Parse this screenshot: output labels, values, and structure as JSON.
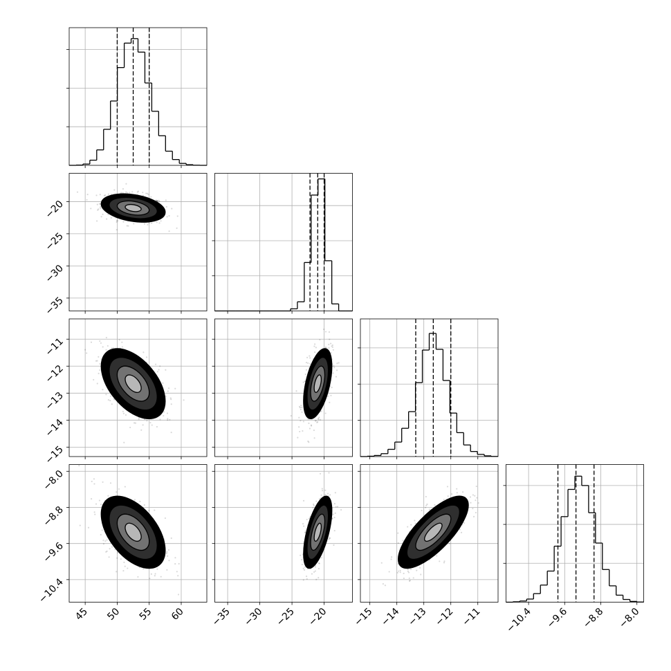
{
  "chart_data": {
    "type": "corner",
    "grid": true,
    "levels": [
      0.5,
      1,
      1.5,
      2
    ],
    "params": [
      {
        "xlim": [
          42.5,
          64
        ],
        "ticks": [
          45,
          50,
          55,
          60
        ],
        "bins": [
          42.5,
          43.575,
          44.65,
          45.725,
          46.8,
          47.875,
          48.95,
          50.025,
          51.1,
          52.175,
          53.25,
          54.325,
          55.4,
          56.475,
          57.55,
          58.625,
          59.7,
          60.775,
          61.85,
          62.925,
          64
        ],
        "counts": [
          0,
          2,
          10,
          40,
          120,
          280,
          500,
          760,
          950,
          985,
          880,
          640,
          420,
          230,
          110,
          45,
          15,
          5,
          1,
          0
        ],
        "hist_ylim": [
          0,
          1070
        ],
        "hist_yticks": [
          300,
          600,
          900
        ],
        "quantiles": [
          50.0,
          52.5,
          55.0
        ],
        "sd": 2.5
      },
      {
        "xlim": [
          -37,
          -15.6
        ],
        "ticks": [
          {
            "value": -35,
            "label": "−35"
          },
          {
            "value": -30,
            "label": "−30"
          },
          {
            "value": -25,
            "label": "−25"
          },
          {
            "value": -20,
            "label": "−20"
          }
        ],
        "bins": [
          -37,
          -35.93,
          -34.86,
          -33.79,
          -32.72,
          -31.65,
          -30.58,
          -29.51,
          -28.44,
          -27.37,
          -26.3,
          -25.23,
          -24.16,
          -23.09,
          -22.02,
          -20.95,
          -19.88,
          -18.81,
          -17.74,
          -16.67,
          -15.6
        ],
        "counts": [
          0,
          0,
          0,
          0,
          0,
          0,
          0,
          0,
          0,
          0,
          0,
          30,
          130,
          690,
          1650,
          1880,
          715,
          100,
          0,
          0
        ],
        "hist_ylim": [
          0,
          1960
        ],
        "hist_yticks": [
          500,
          1000,
          1500
        ],
        "quantiles": [
          -22.2,
          -21.0,
          -20.0
        ],
        "sd": 1.1
      },
      {
        "xlim": [
          -15.35,
          -10.25
        ],
        "ticks": [
          {
            "value": -15,
            "label": "−15"
          },
          {
            "value": -14,
            "label": "−14"
          },
          {
            "value": -13,
            "label": "−13"
          },
          {
            "value": -12,
            "label": "−12"
          },
          {
            "value": -11,
            "label": "−11"
          }
        ],
        "bins": [
          -15.35,
          -15.095,
          -14.84,
          -14.585,
          -14.33,
          -14.075,
          -13.82,
          -13.565,
          -13.31,
          -13.055,
          -12.8,
          -12.545,
          -12.29,
          -12.035,
          -11.78,
          -11.525,
          -11.27,
          -11.015,
          -10.76,
          -10.505,
          -10.25
        ],
        "counts": [
          0,
          5,
          15,
          40,
          100,
          200,
          390,
          620,
          1020,
          1470,
          1700,
          1480,
          1050,
          600,
          330,
          160,
          70,
          30,
          10,
          2
        ],
        "hist_ylim": [
          0,
          1900
        ],
        "hist_yticks": [
          500,
          1000,
          1500
        ],
        "quantiles": [
          -13.3,
          -12.65,
          -12.0
        ],
        "sd": 0.65
      },
      {
        "xlim": [
          -10.9,
          -7.85
        ],
        "ticks": [
          {
            "value": -10.4,
            "label": "−10.4"
          },
          {
            "value": -9.6,
            "label": "−9.6"
          },
          {
            "value": -8.8,
            "label": "−8.8"
          },
          {
            "value": -8.0,
            "label": "−8.0"
          }
        ],
        "bins": [
          -10.9,
          -10.7475,
          -10.595,
          -10.4425,
          -10.29,
          -10.1375,
          -9.985,
          -9.8325,
          -9.68,
          -9.5275,
          -9.375,
          -9.2225,
          -9.07,
          -8.9175,
          -8.765,
          -8.6125,
          -8.46,
          -8.3075,
          -8.155,
          -8.0025,
          -7.85
        ],
        "counts": [
          0,
          5,
          15,
          40,
          110,
          220,
          400,
          720,
          1100,
          1450,
          1620,
          1500,
          1150,
          760,
          420,
          210,
          90,
          35,
          10,
          2
        ],
        "hist_ylim": [
          0,
          1770
        ],
        "hist_yticks": [
          500,
          1000,
          1500
        ],
        "quantiles": [
          -9.75,
          -9.35,
          -8.95
        ],
        "sd": 0.4
      }
    ],
    "correlations": [
      -0.3,
      -0.5,
      0.5,
      -0.5,
      0.6,
      0.75
    ]
  }
}
